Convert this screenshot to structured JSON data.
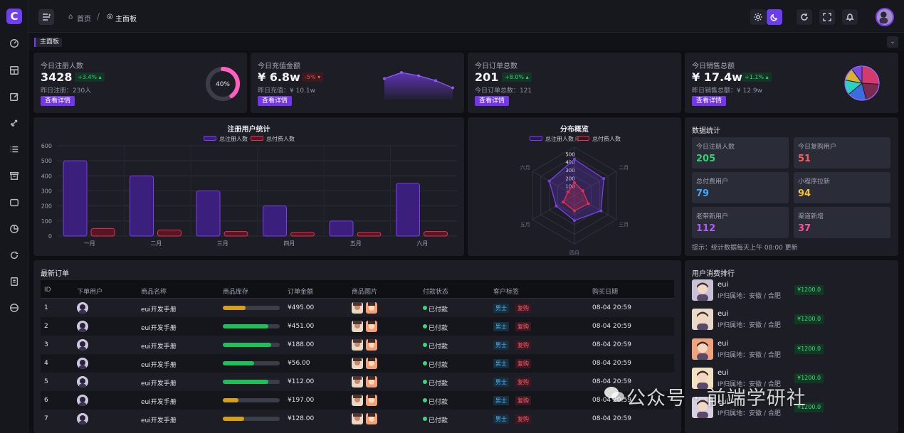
{
  "sidebar": {
    "logo": "C",
    "icons": [
      "dashboard-icon",
      "layout-icon",
      "edit-icon",
      "rocket-icon",
      "list-icon",
      "archive-icon",
      "chat-icon",
      "pie-chart-icon",
      "refresh-24-icon",
      "document-icon",
      "browser-icon"
    ]
  },
  "header": {
    "breadcrumb_home": "首页",
    "breadcrumb_current": "主面板"
  },
  "tabs": [
    {
      "label": "主面板"
    }
  ],
  "stats": [
    {
      "title": "今日注册人数",
      "value": "3428",
      "change": "+3.4%",
      "trend": "up",
      "sub": "昨日注册：230人",
      "button": "查看详情",
      "gauge_label": "40%",
      "gauge_fraction": 0.4
    },
    {
      "title": "今日充值金额",
      "value": "¥ 6.8w",
      "change": "-5%",
      "trend": "down",
      "sub": "昨日充值：¥ 10.1w",
      "button": "查看详情",
      "spark": [
        45,
        60,
        52,
        40,
        22
      ]
    },
    {
      "title": "今日订单总数",
      "value": "201",
      "change": "+8.0%",
      "trend": "up",
      "sub": "今日订单总数：121",
      "button": "查看详情"
    },
    {
      "title": "今日销售总额",
      "value": "¥ 17.4w",
      "change": "+1.1%",
      "trend": "up",
      "sub": "昨日销售总额：¥ 12.9w",
      "button": "查看详情",
      "pie": [
        0.26,
        0.2,
        0.18,
        0.14,
        0.12,
        0.1
      ],
      "pie_colors": [
        "#d63a6d",
        "#7b2a52",
        "#3b6de0",
        "#2ad0c4",
        "#d8b237",
        "#7a48e8"
      ]
    }
  ],
  "chart_data": [
    {
      "type": "bar",
      "title": "注册用户统计",
      "categories": [
        "一月",
        "二月",
        "三月",
        "四月",
        "五月",
        "六月"
      ],
      "series": [
        {
          "name": "总注册人数",
          "values": [
            500,
            400,
            300,
            200,
            100,
            350
          ],
          "color": "#7a3df0"
        },
        {
          "name": "总付费人数",
          "values": [
            50,
            40,
            30,
            25,
            25,
            30
          ],
          "color": "#e0314f"
        }
      ],
      "yticks": [
        "600",
        "500",
        "400",
        "300",
        "200",
        "100",
        "0"
      ],
      "ylim": [
        0,
        600
      ],
      "legend": "top-center",
      "grid": true
    },
    {
      "type": "radar",
      "title": "分布概览",
      "axes": [
        "一月",
        "二月",
        "三月",
        "四月",
        "五月",
        "六月"
      ],
      "rticks": [
        "500",
        "400",
        "300",
        "200",
        "100"
      ],
      "series": [
        {
          "name": "总注册人数",
          "values": [
            450,
            420,
            380,
            310,
            260,
            360
          ],
          "color": "#7a3df0"
        },
        {
          "name": "总付费人数",
          "values": [
            160,
            120,
            200,
            190,
            160,
            90
          ],
          "color": "#e0314f"
        }
      ],
      "rmax": 600,
      "legend": "top-center"
    }
  ],
  "data_stats": {
    "title": "数据统计",
    "tiles": [
      {
        "label": "今日注册人数",
        "value": "205",
        "color": "#2fd26d"
      },
      {
        "label": "今日复购用户",
        "value": "51",
        "color": "#ff5a5a"
      },
      {
        "label": "总付费用户",
        "value": "79",
        "color": "#3fa8ff"
      },
      {
        "label": "小程序拉新",
        "value": "94",
        "color": "#f5c338"
      },
      {
        "label": "老带新用户",
        "value": "112",
        "color": "#b25cff"
      },
      {
        "label": "渠道新增",
        "value": "37",
        "color": "#ff4fa0"
      }
    ],
    "note": "提示：统计数据每天上午 08:00 更新"
  },
  "orders": {
    "title": "最新订单",
    "columns": [
      "ID",
      "下单用户",
      "商品名称",
      "商品库存",
      "订单金额",
      "商品图片",
      "付款状态",
      "客户标签",
      "购买日期"
    ],
    "rows": [
      {
        "id": "1",
        "product": "eui开发手册",
        "stock": 0.4,
        "stock_color": "#d6a019",
        "amount": "¥495.00",
        "status": "已付款",
        "tag1": "男士",
        "tag2": "复购",
        "date": "08-04 20:59"
      },
      {
        "id": "2",
        "product": "eui开发手册",
        "stock": 0.8,
        "stock_color": "#1fbf5a",
        "amount": "¥451.00",
        "status": "已付款",
        "tag1": "男士",
        "tag2": "复购",
        "date": "08-04 20:59"
      },
      {
        "id": "3",
        "product": "eui开发手册",
        "stock": 0.85,
        "stock_color": "#1fbf5a",
        "amount": "¥188.00",
        "status": "已付款",
        "tag1": "男士",
        "tag2": "复购",
        "date": "08-04 20:59"
      },
      {
        "id": "4",
        "product": "eui开发手册",
        "stock": 0.55,
        "stock_color": "#1fbf5a",
        "amount": "¥56.00",
        "status": "已付款",
        "tag1": "男士",
        "tag2": "复购",
        "date": "08-04 20:59"
      },
      {
        "id": "5",
        "product": "eui开发手册",
        "stock": 0.8,
        "stock_color": "#1fbf5a",
        "amount": "¥112.00",
        "status": "已付款",
        "tag1": "男士",
        "tag2": "复购",
        "date": "08-04 20:59"
      },
      {
        "id": "6",
        "product": "eui开发手册",
        "stock": 0.28,
        "stock_color": "#d6a019",
        "amount": "¥197.00",
        "status": "已付款",
        "tag1": "男士",
        "tag2": "复购",
        "date": "08-04 20:59"
      },
      {
        "id": "7",
        "product": "eui开发手册",
        "stock": 0.38,
        "stock_color": "#d6a019",
        "amount": "¥128.00",
        "status": "已付款",
        "tag1": "男士",
        "tag2": "复购",
        "date": "08-04 20:59"
      }
    ]
  },
  "ranking": {
    "title": "用户消费排行",
    "items": [
      {
        "name": "eui",
        "loc": "IP归属地：安徽 / 合肥",
        "money": "¥1200.0",
        "color": "#c9c2d6"
      },
      {
        "name": "eui",
        "loc": "IP归属地：安徽 / 合肥",
        "money": "¥1200.0",
        "color": "#e8d9c8"
      },
      {
        "name": "eui",
        "loc": "IP归属地：安徽 / 合肥",
        "money": "¥1200.0",
        "color": "#f0a37f"
      },
      {
        "name": "eui",
        "loc": "IP归属地：安徽 / 合肥",
        "money": "¥1200.0",
        "color": "#f2e2c0"
      },
      {
        "name": "eui",
        "loc": "IP归属地：安徽 / 合肥",
        "money": "¥1200.0",
        "color": "#d6d0e2"
      }
    ]
  },
  "watermark": "公众号 · 前端学研社"
}
